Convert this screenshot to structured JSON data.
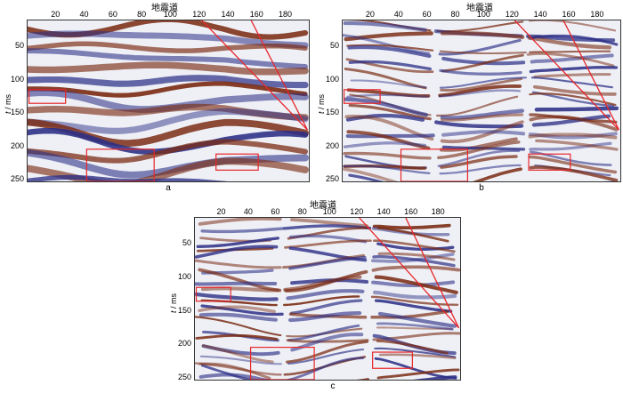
{
  "x_axis_title": "地震道",
  "y_axis_label_italic": "t",
  "y_axis_label_rest": " / ms",
  "x_ticks": [
    "20",
    "40",
    "60",
    "80",
    "100",
    "120",
    "140",
    "160",
    "180"
  ],
  "y_ticks": [
    "50",
    "100",
    "150",
    "200",
    "250"
  ],
  "panels": [
    {
      "label": "a",
      "variant": "smooth"
    },
    {
      "label": "b",
      "variant": "detailed"
    },
    {
      "label": "c",
      "variant": "detailed"
    }
  ],
  "colors": {
    "positive": "#7a2a12",
    "negative": "#2d2f86",
    "background": "#eef0f6",
    "marker": "#e8262a"
  }
}
